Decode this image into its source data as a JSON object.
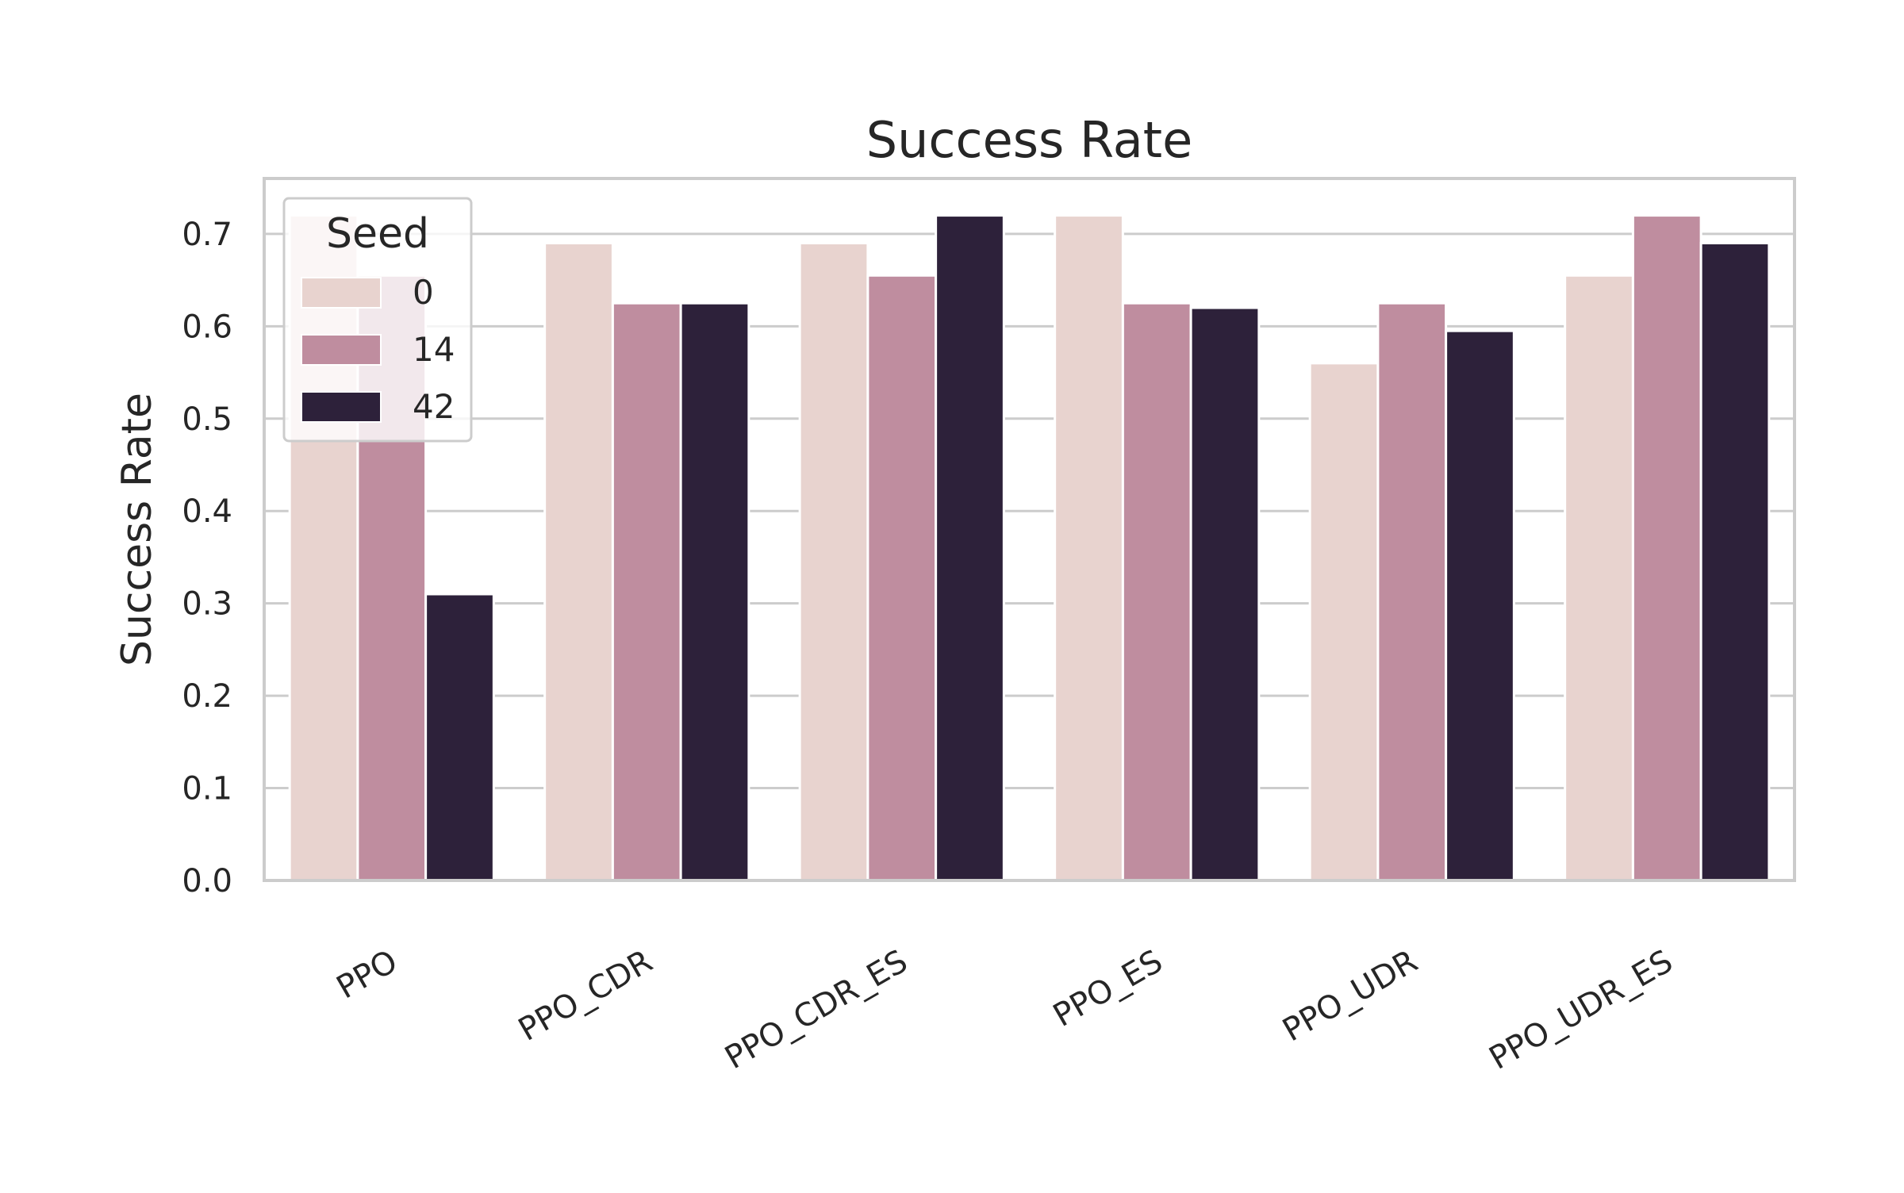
{
  "chart_data": {
    "type": "bar",
    "title": "Success Rate",
    "xlabel": "",
    "ylabel": "Success Rate",
    "categories": [
      "PPO",
      "PPO_CDR",
      "PPO_CDR_ES",
      "PPO_ES",
      "PPO_UDR",
      "PPO_UDR_ES"
    ],
    "series": [
      {
        "name": "0",
        "values": [
          0.72,
          0.69,
          0.69,
          0.72,
          0.56,
          0.655
        ],
        "color": "#E8D3CF"
      },
      {
        "name": "14",
        "values": [
          0.655,
          0.625,
          0.655,
          0.625,
          0.625,
          0.72
        ],
        "color": "#BF8D9F"
      },
      {
        "name": "42",
        "values": [
          0.31,
          0.625,
          0.72,
          0.62,
          0.595,
          0.69
        ],
        "color": "#2D213A"
      }
    ],
    "ylim": [
      0,
      0.76
    ],
    "yticks": [
      "0.0",
      "0.1",
      "0.2",
      "0.3",
      "0.4",
      "0.5",
      "0.6",
      "0.7"
    ],
    "grid": "horizontal",
    "legend": {
      "title": "Seed",
      "placement": "top-left",
      "entries": [
        "0",
        "14",
        "42"
      ]
    }
  }
}
